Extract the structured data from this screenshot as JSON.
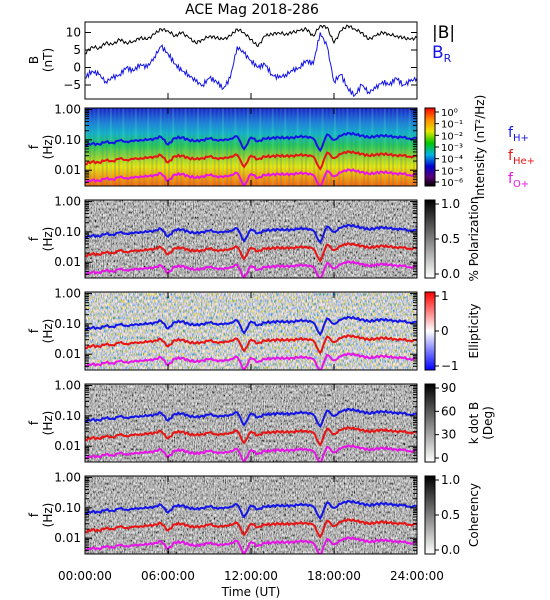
{
  "title": "ACE Mag 2018-286",
  "colors": {
    "black": "#000000",
    "hplus": "#1414e6",
    "heplus": "#e61414",
    "oplus": "#e614e6"
  },
  "chart_data": [
    {
      "panel": "B",
      "type": "line",
      "ylabel_lines": [
        "B",
        "(nT)"
      ],
      "ylim": [
        -9,
        13
      ],
      "yticks": [
        -5,
        0,
        5,
        10
      ],
      "ytick_labels": [
        "−5",
        "0",
        "5",
        "10"
      ],
      "xlim_hours": [
        0,
        24
      ],
      "series": [
        {
          "name": "|B|",
          "color": "black",
          "x": [
            0,
            0.5,
            1,
            1.5,
            2,
            2.5,
            3,
            3.5,
            4,
            4.5,
            5,
            5.5,
            6,
            6.5,
            7,
            7.5,
            8,
            8.5,
            9,
            9.5,
            10,
            10.5,
            11,
            11.5,
            12,
            12.5,
            13,
            13.5,
            14,
            14.5,
            15,
            15.5,
            16,
            16.5,
            17,
            17.5,
            18,
            18.5,
            19,
            19.5,
            20,
            20.5,
            21,
            21.5,
            22,
            22.5,
            23,
            23.5,
            24
          ],
          "y": [
            4,
            6,
            5.5,
            7,
            6.5,
            8,
            7,
            7.5,
            8.5,
            8,
            9.5,
            11,
            10.5,
            9,
            10,
            8.5,
            7,
            8,
            9,
            8.5,
            8,
            9,
            11,
            10,
            8,
            6,
            9,
            9.5,
            10,
            9.5,
            10,
            10.5,
            11,
            9,
            12,
            11.5,
            7,
            10.5,
            12,
            11,
            10,
            8,
            9,
            10,
            9.5,
            9,
            8.5,
            8,
            8.5
          ]
        },
        {
          "name": "B_R",
          "color": "hplus",
          "x": [
            0,
            0.5,
            1,
            1.5,
            2,
            2.5,
            3,
            3.5,
            4,
            4.5,
            5,
            5.5,
            6,
            6.5,
            7,
            7.5,
            8,
            8.5,
            9,
            9.5,
            10,
            10.5,
            11,
            11.5,
            12,
            12.5,
            13,
            13.5,
            14,
            14.5,
            15,
            15.5,
            16,
            16.5,
            17,
            17.5,
            18,
            18.5,
            19,
            19.5,
            20,
            20.5,
            21,
            21.5,
            22,
            22.5,
            23,
            23.5,
            24
          ],
          "y": [
            -3,
            -1,
            -2,
            -4,
            -3,
            -2,
            0,
            -1,
            1,
            0,
            3,
            6,
            4,
            1,
            -1,
            -2,
            -4,
            -5,
            -3,
            -4,
            -6,
            -3,
            6,
            4,
            2,
            0,
            1,
            -2,
            -3,
            -2,
            -1,
            0,
            2,
            1,
            10,
            6,
            -4,
            -2,
            -6,
            -8,
            -5,
            -7,
            -6,
            -4,
            -5,
            -3,
            -5,
            -4,
            -3
          ]
        }
      ]
    },
    {
      "panel": "Intensity",
      "type": "heatmap",
      "ylabel_lines": [
        "f",
        "(Hz)"
      ],
      "ylim_log10": [
        -2.52,
        0.05
      ],
      "yticks": [
        0.01,
        0.1,
        1
      ],
      "ytick_labels": [
        "0.01",
        "0.10",
        "1.00"
      ],
      "colorbar_label": "Intensity (nT²/Hz)",
      "colorbar_tick_labels": [
        "10⁰",
        "10⁻¹",
        "10⁻²",
        "10⁻³",
        "10⁻⁴",
        "10⁻⁵",
        "10⁻⁶"
      ],
      "legend": [
        "fH+",
        "fHe+",
        "fO+"
      ]
    },
    {
      "panel": "Polarization",
      "type": "heatmap",
      "ylabel_lines": [
        "f",
        "(Hz)"
      ],
      "ylim_log10": [
        -2.52,
        0.05
      ],
      "yticks": [
        0.01,
        0.1,
        1
      ],
      "ytick_labels": [
        "0.01",
        "0.10",
        "1.00"
      ],
      "colorbar_label": "% Polarization",
      "colorbar_tick_labels": [
        "1.0",
        "0.5",
        "0.0"
      ]
    },
    {
      "panel": "Ellipticity",
      "type": "heatmap",
      "ylabel_lines": [
        "f",
        "(Hz)"
      ],
      "ylim_log10": [
        -2.52,
        0.05
      ],
      "yticks": [
        0.01,
        0.1,
        1
      ],
      "ytick_labels": [
        "0.01",
        "0.10",
        "1.00"
      ],
      "colorbar_label": "Ellipticity",
      "colorbar_tick_labels": [
        "1",
        "0",
        "−1"
      ]
    },
    {
      "panel": "k dot B",
      "type": "heatmap",
      "ylabel_lines": [
        "f",
        "(Hz)"
      ],
      "ylim_log10": [
        -2.52,
        0.05
      ],
      "yticks": [
        0.01,
        0.1,
        1
      ],
      "ytick_labels": [
        "0.01",
        "0.10",
        "1.00"
      ],
      "colorbar_label_lines": [
        "k dot B",
        "(Deg)"
      ],
      "colorbar_tick_labels": [
        "90",
        "60",
        "30",
        "0"
      ]
    },
    {
      "panel": "Coherency",
      "type": "heatmap",
      "ylabel_lines": [
        "f",
        "(Hz)"
      ],
      "ylim_log10": [
        -2.52,
        0.05
      ],
      "yticks": [
        0.01,
        0.1,
        1
      ],
      "ytick_labels": [
        "0.01",
        "0.10",
        "1.00"
      ],
      "colorbar_label": "Coherency",
      "colorbar_tick_labels": [
        "1.0",
        "0.5",
        "0.0"
      ]
    }
  ],
  "gyrofrequency_lines": {
    "hours": [
      0,
      0.5,
      1,
      1.5,
      2,
      2.5,
      3,
      3.5,
      4,
      4.5,
      5,
      5.5,
      6,
      6.5,
      7,
      7.5,
      8,
      8.5,
      9,
      9.5,
      10,
      10.5,
      11,
      11.5,
      12,
      12.5,
      13,
      13.5,
      14,
      14.5,
      15,
      15.5,
      16,
      16.5,
      17,
      17.5,
      18,
      18.5,
      19,
      19.5,
      20,
      20.5,
      21,
      21.5,
      22,
      22.5,
      23,
      23.5,
      24
    ],
    "H+": [
      0.065,
      0.075,
      0.072,
      0.085,
      0.08,
      0.095,
      0.088,
      0.09,
      0.1,
      0.098,
      0.11,
      0.125,
      0.07,
      0.115,
      0.12,
      0.1,
      0.09,
      0.1,
      0.11,
      0.1,
      0.095,
      0.11,
      0.13,
      0.05,
      0.12,
      0.09,
      0.11,
      0.115,
      0.12,
      0.115,
      0.12,
      0.125,
      0.13,
      0.11,
      0.045,
      0.15,
      0.1,
      0.135,
      0.17,
      0.15,
      0.14,
      0.12,
      0.13,
      0.14,
      0.13,
      0.125,
      0.12,
      0.11,
      0.115
    ],
    "He+": [
      0.016,
      0.019,
      0.018,
      0.021,
      0.02,
      0.024,
      0.022,
      0.023,
      0.025,
      0.025,
      0.028,
      0.031,
      0.018,
      0.029,
      0.03,
      0.025,
      0.023,
      0.025,
      0.028,
      0.025,
      0.024,
      0.028,
      0.032,
      0.013,
      0.03,
      0.023,
      0.028,
      0.029,
      0.03,
      0.029,
      0.03,
      0.031,
      0.032,
      0.028,
      0.011,
      0.038,
      0.025,
      0.034,
      0.042,
      0.037,
      0.035,
      0.03,
      0.032,
      0.035,
      0.032,
      0.031,
      0.03,
      0.028,
      0.029
    ],
    "O+": [
      0.0041,
      0.0047,
      0.0045,
      0.0053,
      0.005,
      0.0059,
      0.0055,
      0.0056,
      0.0063,
      0.0061,
      0.0069,
      0.0078,
      0.0044,
      0.0072,
      0.0075,
      0.0063,
      0.0056,
      0.0063,
      0.0069,
      0.0063,
      0.0059,
      0.0069,
      0.0081,
      0.0031,
      0.0075,
      0.0056,
      0.0069,
      0.0072,
      0.0075,
      0.0072,
      0.0075,
      0.0078,
      0.0081,
      0.0069,
      0.0028,
      0.0094,
      0.0063,
      0.0084,
      0.0106,
      0.0094,
      0.0088,
      0.0075,
      0.0081,
      0.0088,
      0.0081,
      0.0078,
      0.0075,
      0.0069,
      0.0072
    ]
  },
  "labels": {
    "b_total": "|B|",
    "b_r_main": "B",
    "b_r_sub": "R",
    "f_main": "f",
    "sub_hplus": "H+",
    "sub_heplus": "He+",
    "sub_oplus": "O+"
  },
  "x_axis": {
    "label": "Time (UT)",
    "tick_labels": [
      "00:00:00",
      "06:00:00",
      "12:00:00",
      "18:00:00",
      "24:00:00"
    ]
  }
}
